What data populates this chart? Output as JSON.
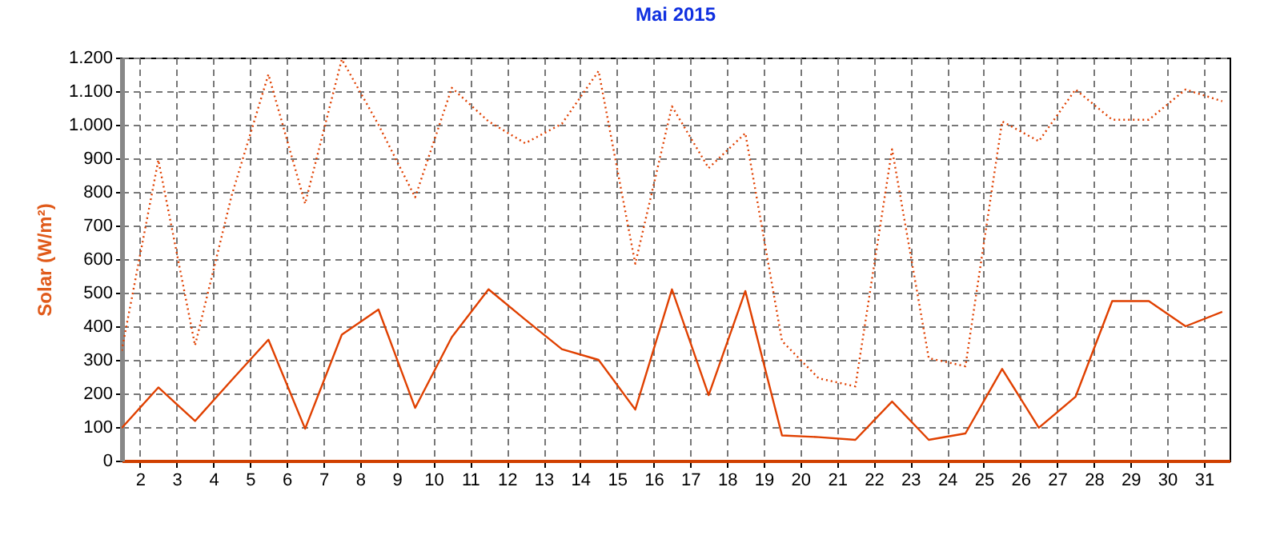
{
  "chart_data": {
    "type": "line",
    "title": "Mai 2015",
    "ylabel": "Solar (W/m²)",
    "x": [
      1.5,
      2.5,
      3.5,
      4.5,
      5.5,
      6.5,
      7.5,
      8.5,
      9.5,
      10.5,
      11.5,
      12.5,
      13.5,
      14.5,
      15.5,
      16.5,
      17.5,
      18.5,
      19.5,
      20.5,
      21.5,
      22.5,
      23.5,
      24.5,
      25.5,
      26.5,
      27.5,
      28.5,
      29.5,
      30.5,
      31.5
    ],
    "series": [
      {
        "color": "#e04000",
        "line_style": "dotted",
        "values": [
          327,
          895,
          343,
          790,
          1150,
          765,
          1195,
          1000,
          784,
          1110,
          1010,
          945,
          1003,
          1160,
          586,
          1055,
          871,
          975,
          356,
          245,
          221,
          927,
          305,
          281,
          1010,
          951,
          1105,
          1015,
          1015,
          1105,
          1070
        ]
      },
      {
        "color": "#e04000",
        "line_style": "solid",
        "values": [
          97,
          218,
          118,
          240,
          360,
          95,
          375,
          450,
          157,
          368,
          510,
          420,
          332,
          300,
          152,
          510,
          195,
          505,
          75,
          70,
          62,
          176,
          62,
          81,
          273,
          98,
          190,
          475,
          475,
          400,
          443
        ]
      }
    ],
    "xlim": [
      1.5,
      31.7
    ],
    "xticks": [
      2,
      3,
      4,
      5,
      6,
      7,
      8,
      9,
      10,
      11,
      12,
      13,
      14,
      15,
      16,
      17,
      18,
      19,
      20,
      21,
      22,
      23,
      24,
      25,
      26,
      27,
      28,
      29,
      30,
      31
    ],
    "ylim": [
      0,
      1200
    ],
    "yticks": [
      0,
      100,
      200,
      300,
      400,
      500,
      600,
      700,
      800,
      900,
      {
        "value": 1000,
        "label": "1.000"
      },
      {
        "value": 1100,
        "label": "1.100"
      },
      {
        "value": 1200,
        "label": "1.200"
      }
    ],
    "grid": true,
    "marker": "none"
  }
}
